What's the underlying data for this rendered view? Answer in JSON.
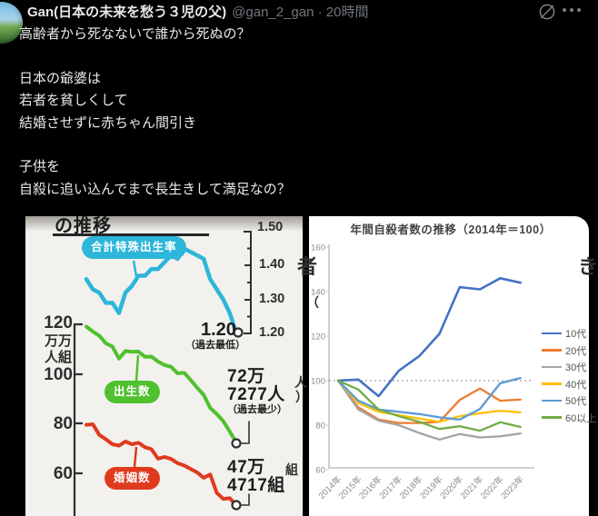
{
  "header": {
    "display_name": "Gan(日本の未来を愁う３児の父)",
    "meta": "@gan_2_gan · 20時間"
  },
  "post": {
    "text": "高齢者から死なないで誰から死ぬの？\n\n日本の爺婆は\n若者を貧しくして\n結婚させずに赤ちゃん間引き\n\n子供を\n自殺に追い込んでまで長生きして満足なの？"
  },
  "colors": {
    "background": "#000000",
    "text_primary": "#e7e9ea",
    "text_secondary": "#71767b",
    "axis_gray": "#8a8a8a"
  },
  "chart_data": [
    {
      "type": "line",
      "title_visible": "の推移",
      "x_axis": {
        "labels_visible": false,
        "points": 24
      },
      "left_axis": {
        "ticks": [
          "120",
          "100",
          "80",
          "60"
        ],
        "unit_lines": [
          "万万",
          "人組"
        ]
      },
      "right_axis": {
        "ticks": [
          "1.50",
          "1.40",
          "1.30",
          "1.20"
        ],
        "range": [
          1.2,
          1.5
        ]
      },
      "series": [
        {
          "name": "合計特殊出生率",
          "color": "#2cb6d9",
          "axis": "right",
          "values": [
            1.36,
            1.33,
            1.32,
            1.29,
            1.29,
            1.26,
            1.32,
            1.34,
            1.37,
            1.37,
            1.39,
            1.39,
            1.41,
            1.43,
            1.42,
            1.45,
            1.44,
            1.43,
            1.42,
            1.36,
            1.33,
            1.3,
            1.26,
            1.2
          ]
        },
        {
          "name": "出生数",
          "color": "#4fc02e",
          "axis": "left",
          "values": [
            119.1,
            117.1,
            115.4,
            112.4,
            111.1,
            106.3,
            109.3,
            109.0,
            109.1,
            107.0,
            107.1,
            105.1,
            103.7,
            103.0,
            100.4,
            100.6,
            97.7,
            94.6,
            91.8,
            86.5,
            84.1,
            81.2,
            77.1,
            72.7
          ]
        },
        {
          "name": "婚姻数",
          "color": "#e03a1e",
          "axis": "left",
          "values": [
            79.8,
            80.0,
            75.7,
            74.0,
            72.0,
            71.4,
            73.1,
            72.0,
            72.6,
            70.8,
            70.0,
            66.2,
            66.9,
            66.1,
            64.4,
            63.5,
            62.1,
            60.7,
            58.6,
            59.9,
            52.6,
            50.1,
            50.4,
            47.5
          ]
        }
      ],
      "annotations": {
        "rate": {
          "value": "1.20",
          "note": "（過去最低）"
        },
        "births": {
          "line1": "72万",
          "line2": "7277人",
          "note": "（過去最少）"
        },
        "marriages": {
          "line1": "47万",
          "line2": "4717組"
        }
      }
    },
    {
      "type": "line",
      "title": "年間自殺者数の推移（2014年＝100）",
      "x": [
        "2014年",
        "2015年",
        "2016年",
        "2017年",
        "2018年",
        "2019年",
        "2020年",
        "2021年",
        "2022年",
        "2023年"
      ],
      "ylim": [
        60,
        160
      ],
      "yticks": [
        160,
        140,
        120,
        100,
        80,
        60
      ],
      "baseline": 100,
      "grid": false,
      "legend_position": "right",
      "series": [
        {
          "name": "10代",
          "color": "#4472c4",
          "values": [
            100,
            100.5,
            93,
            104.5,
            111,
            121,
            142,
            141,
            146,
            144
          ]
        },
        {
          "name": "20代",
          "color": "#ed7d31",
          "values": [
            100,
            88,
            82.5,
            81,
            81,
            81.5,
            91.3,
            96.5,
            91,
            91.5
          ]
        },
        {
          "name": "30代",
          "color": "#a5a5a5",
          "values": [
            100,
            87,
            82,
            80,
            76.5,
            73.5,
            76,
            74.5,
            75,
            76.3
          ]
        },
        {
          "name": "40代",
          "color": "#ffc000",
          "values": [
            100,
            90,
            86,
            84.5,
            83,
            81.5,
            84,
            85.3,
            86.5,
            85.7
          ]
        },
        {
          "name": "50代",
          "color": "#5b9bd5",
          "values": [
            100,
            91,
            87,
            86,
            85,
            83.5,
            82.5,
            87.3,
            98.8,
            101.2
          ]
        },
        {
          "name": "60以上",
          "color": "#70ad47",
          "values": [
            100,
            96,
            87,
            84,
            81.5,
            78.3,
            79.5,
            77.5,
            81.3,
            79.2
          ]
        }
      ]
    }
  ],
  "edge_fragments": {
    "left_a": "人",
    "left_b": "）",
    "left_c": "組",
    "right_a": "者",
    "right_b": "（",
    "right_c": "き"
  }
}
